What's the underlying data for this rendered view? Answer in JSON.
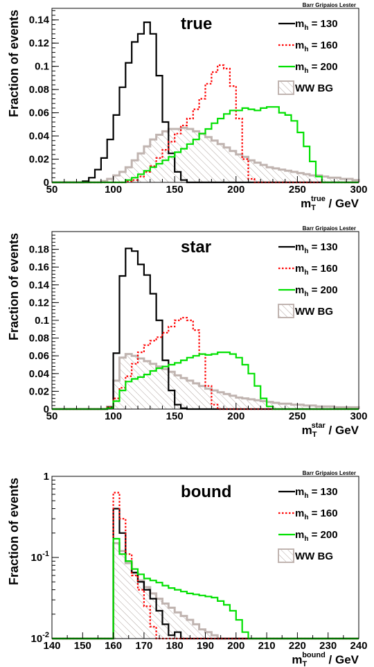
{
  "chart_data": [
    {
      "type": "line",
      "title": "true",
      "credit": "Barr Gripaios Lester",
      "ylabel": "Fraction of events",
      "xlabel_main": "m",
      "xlabel_sub": "T",
      "xlabel_sup": "true",
      "xlabel_unit": " / GeV",
      "xlim": [
        50,
        300
      ],
      "ylim": [
        0,
        0.15
      ],
      "yscale": "linear",
      "xticks": [
        "50",
        "100",
        "150",
        "200",
        "250",
        "300"
      ],
      "yticks": [
        "0",
        "0.02",
        "0.04",
        "0.06",
        "0.08",
        "0.1",
        "0.12",
        "0.14"
      ],
      "ytick_values": [
        0,
        0.02,
        0.04,
        0.06,
        0.08,
        0.1,
        0.12,
        0.14
      ],
      "legend_position": "top-right",
      "bin_edges_start": 50,
      "bin_width": 5,
      "series": [
        {
          "label_main": "m",
          "label_sub": "h",
          "label_value": " = 130",
          "color": "#000000",
          "style": "solid",
          "values": [
            0,
            0,
            0,
            0,
            0,
            0.001,
            0.004,
            0.011,
            0.021,
            0.037,
            0.058,
            0.082,
            0.103,
            0.121,
            0.128,
            0.138,
            0.128,
            0.092,
            0.052,
            0.025,
            0.009,
            0.002,
            0,
            0,
            0,
            0,
            0,
            0,
            0,
            0,
            0,
            0,
            0,
            0,
            0,
            0,
            0,
            0,
            0,
            0,
            0,
            0,
            0,
            0,
            0,
            0,
            0,
            0,
            0,
            0
          ]
        },
        {
          "label_main": "m",
          "label_sub": "h",
          "label_value": " = 160",
          "color": "#ff0000",
          "style": "dotted",
          "values": [
            0,
            0,
            0,
            0,
            0,
            0,
            0,
            0,
            0,
            0,
            0,
            0,
            0.001,
            0.002,
            0.005,
            0.009,
            0.014,
            0.021,
            0.028,
            0.035,
            0.042,
            0.049,
            0.055,
            0.063,
            0.072,
            0.085,
            0.095,
            0.101,
            0.098,
            0.083,
            0.055,
            0.02,
            0.003,
            0,
            0,
            0,
            0,
            0,
            0,
            0,
            0,
            0,
            0,
            0,
            0,
            0,
            0,
            0,
            0,
            0
          ]
        },
        {
          "label_main": "m",
          "label_sub": "h",
          "label_value": " = 200",
          "color": "#00e000",
          "style": "solid",
          "values": [
            0,
            0,
            0,
            0,
            0,
            0,
            0,
            0,
            0,
            0,
            0,
            0,
            0.002,
            0.004,
            0.007,
            0.01,
            0.013,
            0.016,
            0.019,
            0.022,
            0.026,
            0.029,
            0.033,
            0.037,
            0.042,
            0.046,
            0.051,
            0.055,
            0.059,
            0.062,
            0.062,
            0.064,
            0.063,
            0.062,
            0.064,
            0.065,
            0.065,
            0.06,
            0.058,
            0.053,
            0.043,
            0.031,
            0.018,
            0.005,
            0,
            0,
            0,
            0,
            0,
            0
          ]
        },
        {
          "label_main": "WW BG",
          "label_sub": "",
          "label_value": "",
          "color": "#c0b4b0",
          "style": "hatched",
          "values": [
            0,
            0,
            0,
            0,
            0,
            0,
            0,
            0,
            0.001,
            0.003,
            0.006,
            0.009,
            0.013,
            0.019,
            0.025,
            0.031,
            0.037,
            0.041,
            0.044,
            0.046,
            0.046,
            0.047,
            0.046,
            0.044,
            0.042,
            0.039,
            0.036,
            0.033,
            0.03,
            0.027,
            0.024,
            0.022,
            0.019,
            0.017,
            0.015,
            0.013,
            0.012,
            0.011,
            0.01,
            0.009,
            0.008,
            0.007,
            0.006,
            0.006,
            0.005,
            0.004,
            0.004,
            0.003,
            0.003,
            0.002
          ]
        }
      ]
    },
    {
      "type": "line",
      "title": "star",
      "credit": "Barr Gripaios Lester",
      "ylabel": "Fraction of events",
      "xlabel_main": "m",
      "xlabel_sub": "T",
      "xlabel_sup": "star",
      "xlabel_unit": " / GeV",
      "xlim": [
        50,
        300
      ],
      "ylim": [
        0,
        0.2
      ],
      "yscale": "linear",
      "xticks": [
        "50",
        "100",
        "150",
        "200",
        "250",
        "300"
      ],
      "yticks": [
        "0",
        "0.02",
        "0.04",
        "0.06",
        "0.08",
        "0.1",
        "0.12",
        "0.14",
        "0.16",
        "0.18"
      ],
      "ytick_values": [
        0,
        0.02,
        0.04,
        0.06,
        0.08,
        0.1,
        0.12,
        0.14,
        0.16,
        0.18
      ],
      "legend_position": "top-right",
      "bin_edges_start": 50,
      "bin_width": 5,
      "series": [
        {
          "label_main": "m",
          "label_sub": "h",
          "label_value": " = 130",
          "color": "#000000",
          "style": "solid",
          "values": [
            0,
            0,
            0,
            0,
            0,
            0,
            0,
            0,
            0,
            0.002,
            0.063,
            0.15,
            0.181,
            0.178,
            0.163,
            0.151,
            0.13,
            0.1,
            0.055,
            0.021,
            0.005,
            0.001,
            0,
            0,
            0,
            0,
            0,
            0,
            0,
            0,
            0,
            0,
            0,
            0,
            0,
            0,
            0,
            0,
            0,
            0,
            0,
            0,
            0,
            0,
            0,
            0,
            0,
            0,
            0,
            0
          ]
        },
        {
          "label_main": "m",
          "label_sub": "h",
          "label_value": " = 160",
          "color": "#ff0000",
          "style": "dotted",
          "values": [
            0,
            0,
            0,
            0,
            0,
            0,
            0,
            0,
            0,
            0.002,
            0.012,
            0.024,
            0.037,
            0.051,
            0.064,
            0.072,
            0.077,
            0.081,
            0.086,
            0.093,
            0.1,
            0.103,
            0.1,
            0.089,
            0.062,
            0.026,
            0.005,
            0,
            0,
            0,
            0,
            0,
            0,
            0,
            0,
            0,
            0,
            0,
            0,
            0,
            0,
            0,
            0,
            0,
            0,
            0,
            0,
            0,
            0,
            0
          ]
        },
        {
          "label_main": "m",
          "label_sub": "h",
          "label_value": " = 200",
          "color": "#00e000",
          "style": "solid",
          "values": [
            0,
            0,
            0,
            0,
            0,
            0,
            0,
            0,
            0,
            0.001,
            0.009,
            0.021,
            0.031,
            0.034,
            0.036,
            0.039,
            0.043,
            0.046,
            0.048,
            0.05,
            0.052,
            0.055,
            0.058,
            0.06,
            0.062,
            0.061,
            0.062,
            0.064,
            0.064,
            0.062,
            0.058,
            0.05,
            0.04,
            0.026,
            0.012,
            0.003,
            0,
            0,
            0,
            0,
            0,
            0,
            0,
            0,
            0,
            0,
            0,
            0,
            0,
            0
          ]
        },
        {
          "label_main": "WW BG",
          "label_sub": "",
          "label_value": "",
          "color": "#c0b4b0",
          "style": "hatched",
          "values": [
            0,
            0,
            0,
            0,
            0,
            0,
            0,
            0,
            0,
            0.003,
            0.032,
            0.058,
            0.062,
            0.06,
            0.057,
            0.054,
            0.051,
            0.048,
            0.045,
            0.042,
            0.038,
            0.035,
            0.032,
            0.029,
            0.026,
            0.023,
            0.021,
            0.019,
            0.017,
            0.015,
            0.013,
            0.012,
            0.011,
            0.01,
            0.009,
            0.008,
            0.007,
            0.006,
            0.006,
            0.005,
            0.005,
            0.004,
            0.004,
            0.003,
            0.003,
            0.003,
            0.002,
            0.002,
            0.002,
            0.002
          ]
        }
      ]
    },
    {
      "type": "line",
      "title": "bound",
      "credit": "Barr Gripaios Lester",
      "ylabel": "Fraction of events",
      "xlabel_main": "m",
      "xlabel_sub": "T",
      "xlabel_sup": "bound",
      "xlabel_unit": " / GeV",
      "xlim": [
        140,
        240
      ],
      "ylim": [
        0.01,
        1
      ],
      "yscale": "log",
      "xticks": [
        "140",
        "150",
        "160",
        "170",
        "180",
        "190",
        "200",
        "210",
        "220",
        "230",
        "240"
      ],
      "yticks_log": [
        {
          "mantissa": "1",
          "exp": "",
          "value": 1
        },
        {
          "mantissa": "10",
          "exp": "-1",
          "value": 0.1
        },
        {
          "mantissa": "10",
          "exp": "-2",
          "value": 0.01
        }
      ],
      "legend_position": "top-right",
      "bin_edges_start": 140,
      "bin_width": 2,
      "series": [
        {
          "label_main": "m",
          "label_sub": "h",
          "label_value": " = 130",
          "color": "#000000",
          "style": "solid",
          "values": [
            0,
            0,
            0,
            0,
            0,
            0,
            0,
            0,
            0,
            0,
            0.4,
            0.2,
            0.09,
            0.065,
            0.05,
            0.04,
            0.031,
            0.022,
            0.015,
            0.011,
            0.012,
            0.01,
            0,
            0,
            0,
            0,
            0,
            0,
            0,
            0,
            0,
            0,
            0,
            0,
            0,
            0,
            0,
            0,
            0,
            0,
            0,
            0,
            0,
            0,
            0,
            0,
            0,
            0,
            0,
            0
          ]
        },
        {
          "label_main": "m",
          "label_sub": "h",
          "label_value": " = 160",
          "color": "#ff0000",
          "style": "dotted",
          "values": [
            0,
            0,
            0,
            0,
            0,
            0,
            0,
            0,
            0,
            0,
            0.63,
            0.3,
            0.11,
            0.06,
            0.04,
            0.025,
            0.014,
            0.01,
            0,
            0,
            0,
            0,
            0,
            0,
            0,
            0,
            0,
            0,
            0,
            0,
            0,
            0,
            0,
            0,
            0,
            0,
            0,
            0,
            0,
            0,
            0,
            0,
            0,
            0,
            0,
            0,
            0,
            0,
            0,
            0
          ]
        },
        {
          "label_main": "m",
          "label_sub": "h",
          "label_value": " = 200",
          "color": "#00e000",
          "style": "solid",
          "values": [
            0,
            0,
            0,
            0,
            0,
            0,
            0,
            0,
            0,
            0,
            0.17,
            0.11,
            0.09,
            0.072,
            0.062,
            0.055,
            0.052,
            0.049,
            0.045,
            0.042,
            0.04,
            0.038,
            0.036,
            0.035,
            0.034,
            0.033,
            0.032,
            0.029,
            0.026,
            0.022,
            0.017,
            0.012,
            0,
            0,
            0,
            0,
            0,
            0,
            0,
            0,
            0,
            0,
            0,
            0,
            0,
            0,
            0,
            0,
            0,
            0
          ]
        },
        {
          "label_main": "WW BG",
          "label_sub": "",
          "label_value": "",
          "color": "#c0b4b0",
          "style": "hatched",
          "values": [
            0,
            0,
            0,
            0,
            0,
            0,
            0,
            0,
            0,
            0,
            0.15,
            0.12,
            0.085,
            0.065,
            0.052,
            0.043,
            0.036,
            0.031,
            0.027,
            0.024,
            0.021,
            0.019,
            0.017,
            0.015,
            0.013,
            0.012,
            0.011,
            0.01,
            0,
            0,
            0,
            0,
            0,
            0,
            0,
            0,
            0,
            0,
            0,
            0,
            0,
            0,
            0,
            0,
            0,
            0,
            0,
            0,
            0,
            0
          ]
        }
      ]
    }
  ]
}
